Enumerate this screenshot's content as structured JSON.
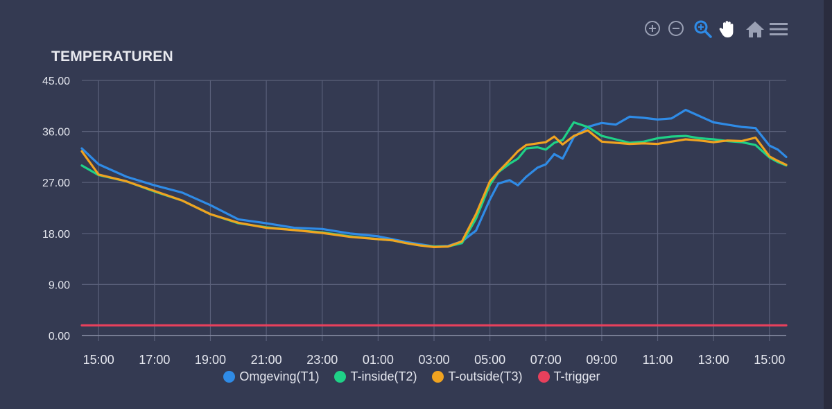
{
  "chart_data": {
    "type": "line",
    "title": "TEMPERATUREN",
    "xlabel": "",
    "ylabel": "",
    "ylim": [
      0,
      45
    ],
    "x_ticks": [
      "15:00",
      "17:00",
      "19:00",
      "21:00",
      "23:00",
      "01:00",
      "03:00",
      "05:00",
      "07:00",
      "09:00",
      "11:00",
      "13:00",
      "15:00"
    ],
    "y_ticks": [
      "0.00",
      "9.00",
      "18.00",
      "27.00",
      "36.00",
      "45.00"
    ],
    "grid": true,
    "legend_position": "bottom",
    "x_hours": [
      -0.6,
      0,
      1,
      2,
      3,
      4,
      5,
      6,
      7,
      8,
      9,
      10,
      10.5,
      11,
      11.5,
      12,
      12.5,
      13,
      13.5,
      14,
      14.3,
      14.7,
      15,
      15.3,
      15.7,
      16,
      16.3,
      16.6,
      17,
      17.5,
      18,
      18.5,
      19,
      19.5,
      20,
      20.5,
      21,
      21.5,
      22,
      22.5,
      23,
      23.5,
      24,
      24.3,
      24.6
    ],
    "series": [
      {
        "name": "Omgeving(T1)",
        "color": "#2f8be6",
        "values": [
          33,
          30.2,
          28,
          26.5,
          25.2,
          23,
          20.5,
          19.8,
          19,
          18.8,
          18,
          17.5,
          17,
          16.5,
          16.1,
          15.7,
          15.8,
          16.6,
          18.5,
          24,
          26.8,
          27.4,
          26.5,
          28,
          29.6,
          30.2,
          32,
          31.2,
          35,
          36.8,
          37.5,
          37.2,
          38.6,
          38.4,
          38.1,
          38.3,
          39.8,
          38.7,
          37.6,
          37.2,
          36.8,
          36.6,
          33.5,
          32.8,
          31.5
        ]
      },
      {
        "name": "T-inside(T2)",
        "color": "#1fd187",
        "values": [
          30,
          28.3,
          27.2,
          25.4,
          23.8,
          21.4,
          19.8,
          19.1,
          18.6,
          18.2,
          17.5,
          17,
          16.8,
          16.3,
          15.9,
          15.7,
          15.7,
          16.3,
          20.6,
          26.6,
          28.8,
          30.3,
          31.2,
          33,
          33.2,
          32.8,
          34,
          34.5,
          37.6,
          36.8,
          35.2,
          34.6,
          34,
          34.2,
          34.8,
          35.1,
          35.2,
          34.8,
          34.6,
          34.3,
          34.1,
          33.6,
          31.4,
          30.6,
          30
        ]
      },
      {
        "name": "T-outside(T3)",
        "color": "#f0a320",
        "values": [
          32.5,
          28.4,
          27.2,
          25.5,
          23.8,
          21.4,
          19.9,
          19,
          18.6,
          18.1,
          17.4,
          17,
          16.8,
          16.3,
          15.9,
          15.6,
          15.7,
          16.6,
          21.4,
          27.2,
          28.9,
          30.9,
          32.5,
          33.6,
          33.9,
          34.1,
          35.1,
          33.7,
          35.2,
          36.2,
          34.2,
          34,
          33.8,
          33.9,
          33.8,
          34.2,
          34.6,
          34.4,
          34.1,
          34.4,
          34.3,
          34.9,
          31.6,
          30.8,
          30.1
        ]
      },
      {
        "name": "T-trigger",
        "color": "#e8405c",
        "values": [
          1.8,
          1.8,
          1.8,
          1.8,
          1.8,
          1.8,
          1.8,
          1.8,
          1.8,
          1.8,
          1.8,
          1.8,
          1.8,
          1.8,
          1.8,
          1.8,
          1.8,
          1.8,
          1.8,
          1.8,
          1.8,
          1.8,
          1.8,
          1.8,
          1.8,
          1.8,
          1.8,
          1.8,
          1.8,
          1.8,
          1.8,
          1.8,
          1.8,
          1.8,
          1.8,
          1.8,
          1.8,
          1.8,
          1.8,
          1.8,
          1.8,
          1.8,
          1.8,
          1.8,
          1.8
        ]
      }
    ]
  },
  "toolbar": {
    "icons": [
      "zoom-in-icon",
      "zoom-out-icon",
      "selection-zoom-icon",
      "pan-hand-icon",
      "home-reset-icon",
      "menu-icon"
    ],
    "active_color": "#2f8be6",
    "inactive_color": "#9aa0b4"
  },
  "colors": {
    "background": "#343a52",
    "grid": "#5a607a",
    "axis_text": "#e4e6ee"
  }
}
